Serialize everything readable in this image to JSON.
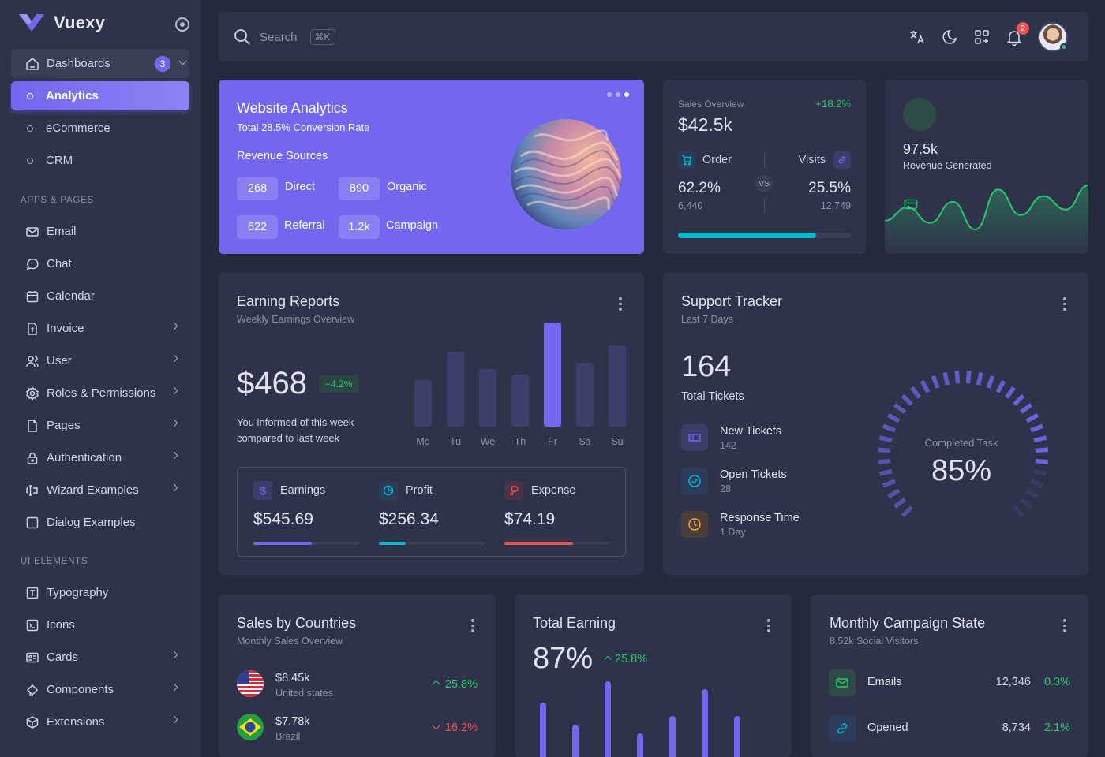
{
  "app": {
    "name": "Vuexy"
  },
  "sidebar": {
    "dashboards": {
      "label": "Dashboards",
      "badge": "3"
    },
    "dashboard_items": [
      {
        "label": "Analytics",
        "active": true
      },
      {
        "label": "eCommerce"
      },
      {
        "label": "CRM"
      }
    ],
    "section_apps": "APPS & PAGES",
    "apps": [
      {
        "label": "Email",
        "icon": "mail-icon"
      },
      {
        "label": "Chat",
        "icon": "chat-icon"
      },
      {
        "label": "Calendar",
        "icon": "calendar-icon"
      },
      {
        "label": "Invoice",
        "icon": "invoice-icon"
      },
      {
        "label": "User",
        "icon": "user-icon"
      },
      {
        "label": "Roles & Permissions",
        "icon": "settings-icon"
      },
      {
        "label": "Pages",
        "icon": "file-icon"
      },
      {
        "label": "Authentication",
        "icon": "lock-icon"
      },
      {
        "label": "Wizard Examples",
        "icon": "forms-icon"
      },
      {
        "label": "Dialog Examples",
        "icon": "square-icon"
      }
    ],
    "section_ui": "UI ELEMENTS",
    "ui": [
      {
        "label": "Typography",
        "icon": "typography-icon"
      },
      {
        "label": "Icons",
        "icon": "brand-icon"
      },
      {
        "label": "Cards",
        "icon": "id-card-icon"
      },
      {
        "label": "Components",
        "icon": "toggle-icon"
      },
      {
        "label": "Extensions",
        "icon": "box-icon"
      }
    ]
  },
  "topbar": {
    "search_placeholder": "Search",
    "shortcut": "⌘K",
    "notifications_count": "2"
  },
  "website_analytics": {
    "title": "Website Analytics",
    "subtitle": "Total 28.5% Conversion Rate",
    "sources_title": "Revenue Sources",
    "sources": [
      {
        "value": "268",
        "label": "Direct"
      },
      {
        "value": "890",
        "label": "Organic"
      },
      {
        "value": "622",
        "label": "Referral"
      },
      {
        "value": "1.2k",
        "label": "Campaign"
      }
    ],
    "slide_count": 3,
    "active_slide": 3
  },
  "sales_overview": {
    "label": "Sales Overview",
    "change": "+18.2%",
    "total": "$42.5k",
    "order": {
      "label": "Order",
      "pct": "62.2%",
      "count": "6,440"
    },
    "visits": {
      "label": "Visits",
      "pct": "25.5%",
      "count": "12,749"
    },
    "vs": "VS",
    "progress": 0.8
  },
  "revenue_generated": {
    "value": "97.5k",
    "label": "Revenue Generated",
    "series": [
      30,
      42,
      28,
      47,
      22,
      58,
      35,
      52,
      40,
      62
    ]
  },
  "earning_reports": {
    "title": "Earning Reports",
    "subtitle": "Weekly Earnings Overview",
    "total": "$468",
    "change": "+4.2%",
    "note": "You informed of this week compared to last week",
    "chart_data": {
      "type": "bar",
      "categories": [
        "Mo",
        "Tu",
        "We",
        "Th",
        "Fr",
        "Sa",
        "Su"
      ],
      "values": [
        40,
        65,
        50,
        45,
        90,
        55,
        70
      ],
      "highlight": "Fr"
    },
    "stats": [
      {
        "label": "Earnings",
        "amount": "$545.69",
        "progress": 0.55,
        "color": "#7367f0"
      },
      {
        "label": "Profit",
        "amount": "$256.34",
        "progress": 0.25,
        "color": "#00bad1"
      },
      {
        "label": "Expense",
        "amount": "$74.19",
        "progress": 0.65,
        "color": "#ea5455"
      }
    ]
  },
  "support_tracker": {
    "title": "Support Tracker",
    "subtitle": "Last 7 Days",
    "total": "164",
    "total_label": "Total Tickets",
    "items": [
      {
        "label": "New Tickets",
        "value": "142"
      },
      {
        "label": "Open Tickets",
        "value": "28"
      },
      {
        "label": "Response Time",
        "value": "1 Day"
      }
    ],
    "gauge_label": "Completed Task",
    "gauge_value": "85%",
    "gauge_fraction": 0.85
  },
  "sales_by_countries": {
    "title": "Sales by Countries",
    "subtitle": "Monthly Sales Overview",
    "rows": [
      {
        "amount": "$8.45k",
        "country": "United states",
        "change": "25.8%",
        "direction": "up"
      },
      {
        "amount": "$7.78k",
        "country": "Brazil",
        "change": "16.2%",
        "direction": "down"
      }
    ]
  },
  "total_earning": {
    "title": "Total Earning",
    "value": "87%",
    "change": "25.8%",
    "chart_data": {
      "type": "bar",
      "values": [
        52,
        24,
        78,
        14,
        35,
        68,
        35
      ]
    }
  },
  "monthly_campaign": {
    "title": "Monthly Campaign State",
    "subtitle": "8.52k Social Visitors",
    "rows": [
      {
        "label": "Emails",
        "value": "12,346",
        "pct": "0.3%"
      },
      {
        "label": "Opened",
        "value": "8,734",
        "pct": "2.1%"
      }
    ]
  }
}
